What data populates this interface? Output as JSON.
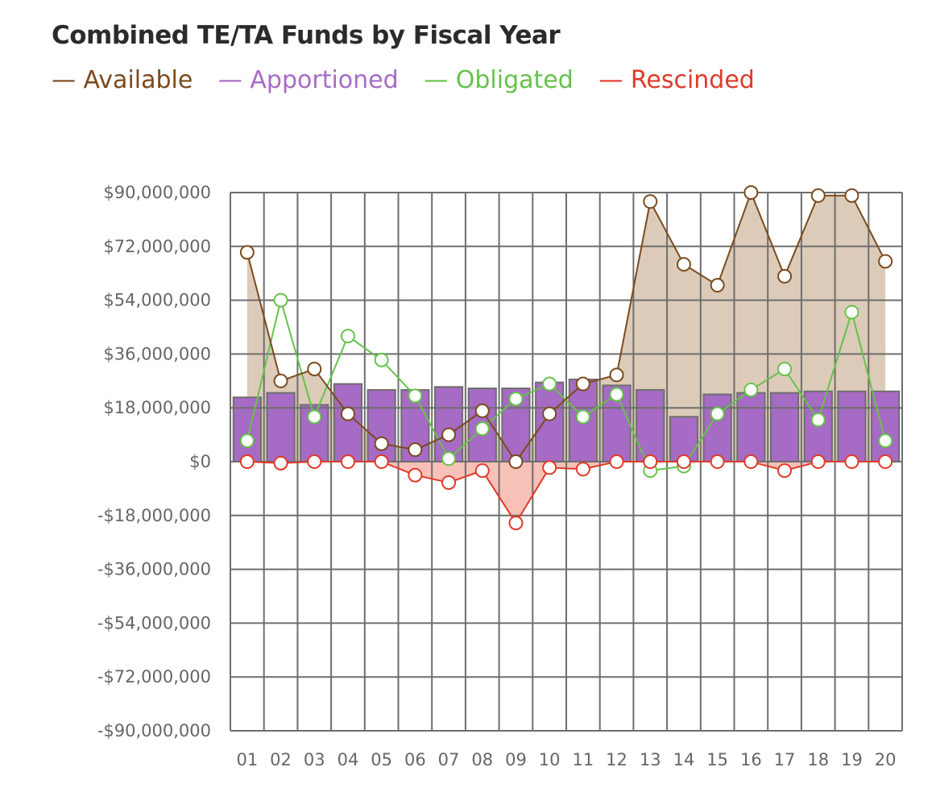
{
  "chart_data": {
    "type": "bar+line+area",
    "title": "Combined TE/TA Funds by Fiscal Year",
    "categories": [
      "01",
      "02",
      "03",
      "04",
      "05",
      "06",
      "07",
      "08",
      "09",
      "10",
      "11",
      "12",
      "13",
      "14",
      "15",
      "16",
      "17",
      "18",
      "19",
      "20"
    ],
    "y_ticks": [
      "$90,000,000",
      "$72,000,000",
      "$54,000,000",
      "$36,000,000",
      "$18,000,000",
      "$0",
      "-$18,000,000",
      "-$36,000,000",
      "-$54,000,000",
      "-$72,000,000",
      "-$90,000,000"
    ],
    "ylim": [
      -90000000,
      90000000
    ],
    "series": [
      {
        "name": "Available",
        "color": "#7b4a1e",
        "fill": "#dccbb8",
        "kind": "line-area",
        "values": [
          70000000,
          27000000,
          31000000,
          16000000,
          6000000,
          4000000,
          9000000,
          17000000,
          0,
          16000000,
          26000000,
          29000000,
          87000000,
          66000000,
          59000000,
          90000000,
          62000000,
          89000000,
          89000000,
          67000000
        ]
      },
      {
        "name": "Apportioned",
        "color": "#a66bc4",
        "kind": "bar",
        "values": [
          21500000,
          23000000,
          19000000,
          26000000,
          24000000,
          24000000,
          25000000,
          24500000,
          24500000,
          26500000,
          27500000,
          25500000,
          24000000,
          15000000,
          22500000,
          23000000,
          23000000,
          23500000,
          23500000,
          23500000
        ]
      },
      {
        "name": "Obligated",
        "color": "#66c24a",
        "kind": "line",
        "values": [
          7000000,
          54000000,
          15000000,
          42000000,
          34000000,
          22000000,
          1000000,
          11000000,
          21000000,
          26000000,
          15000000,
          22500000,
          -3000000,
          -1500000,
          16000000,
          24000000,
          31000000,
          14000000,
          50000000,
          7000000
        ]
      },
      {
        "name": "Rescinded",
        "color": "#e03a2a",
        "fill": "#f7c1b8",
        "kind": "line-area",
        "values": [
          0,
          -500000,
          0,
          0,
          0,
          -4500000,
          -7000000,
          -3000000,
          -20500000,
          -2000000,
          -2500000,
          0,
          0,
          0,
          0,
          0,
          -3000000,
          0,
          0,
          0
        ]
      }
    ]
  },
  "legend": [
    {
      "label": "— Available",
      "color": "#7b4a1e"
    },
    {
      "label": "— Apportioned",
      "color": "#a66bc4"
    },
    {
      "label": "— Obligated",
      "color": "#66c24a"
    },
    {
      "label": "— Rescinded",
      "color": "#e03a2a"
    }
  ]
}
